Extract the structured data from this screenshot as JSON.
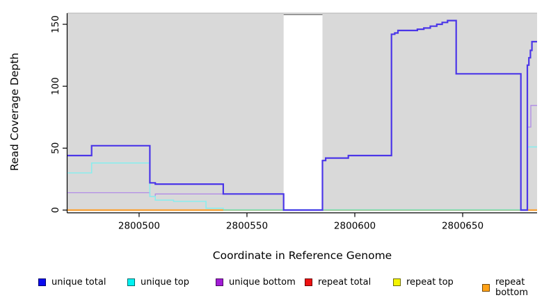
{
  "y_axis": {
    "label": "Read Coverage Depth",
    "ticks": [
      0,
      50,
      100,
      150
    ]
  },
  "x_axis": {
    "label": "Coordinate in Reference Genome",
    "ticks": [
      2800500,
      2800550,
      2800600,
      2800650
    ],
    "tick_labels": [
      "2800500",
      "2800550",
      "2800600",
      "2800650"
    ]
  },
  "legend": {
    "items": [
      {
        "label": "unique total",
        "color": "#0b0bef"
      },
      {
        "label": "unique top",
        "color": "#00f2f2"
      },
      {
        "label": "unique bottom",
        "color": "#a21cd6"
      },
      {
        "label": "repeat total",
        "color": "#ee1111"
      },
      {
        "label": "repeat top",
        "color": "#f4f400"
      },
      {
        "label": "repeat bottom",
        "color": "#ffa217"
      }
    ],
    "item_x": [
      55,
      183,
      310,
      438,
      565,
      693
    ]
  },
  "colors": {
    "plot_background": "#d9d9d9",
    "plot_top_edge": "#c3c3c3",
    "gap_region_fill": "#ffffff",
    "gap_region_top_border": "#8a8a8a",
    "axis": "#000000"
  },
  "chart_data": {
    "type": "line",
    "subtype": "step-after",
    "title": "",
    "xlabel": "Coordinate in Reference Genome",
    "ylabel": "Read Coverage Depth",
    "xlim": [
      2800466.8,
      2800684.5
    ],
    "ylim": [
      0,
      160
    ],
    "x_ticks": [
      2800500,
      2800550,
      2800600,
      2800650
    ],
    "y_ticks": [
      0,
      50,
      100,
      150
    ],
    "grid": false,
    "legend_position": "bottom",
    "gap_region": {
      "x_start": 2800567,
      "x_end": 2800585,
      "note": "white band, no gray background; coverage 0"
    },
    "series": [
      {
        "name": "unique bottom",
        "line_color": "#b08be6",
        "line_width": 1.3,
        "segments": [
          [
            [
              2800466.8,
              14
            ],
            [
              2800505,
              11
            ],
            [
              2800507.5,
              13
            ],
            [
              2800567,
              0
            ],
            [
              2800680,
              67
            ],
            [
              2800681.6,
              84.5
            ],
            [
              2800684.5,
              84.5
            ]
          ]
        ]
      },
      {
        "name": "unique top",
        "line_color": "#8aeded",
        "line_width": 1.6,
        "segments": [
          [
            [
              2800466.8,
              30
            ],
            [
              2800478,
              38
            ],
            [
              2800505,
              11
            ],
            [
              2800507.5,
              8
            ],
            [
              2800516,
              7
            ],
            [
              2800531,
              1.5
            ],
            [
              2800539,
              0.3
            ],
            [
              2800680,
              51
            ],
            [
              2800684.5,
              51
            ]
          ]
        ]
      },
      {
        "name": "repeat bottom",
        "line_color": "#ff9c20",
        "line_width": 2,
        "segments": [
          [
            [
              2800466.8,
              0
            ],
            [
              2800539,
              0
            ]
          ],
          [
            [
              2800680,
              0
            ],
            [
              2800684.5,
              0
            ]
          ]
        ]
      },
      {
        "name": "zero coverage overlap (rendered green)",
        "line_color": "#8ccf8c",
        "line_width": 1.6,
        "segments": [
          [
            [
              2800539,
              0
            ],
            [
              2800677,
              0
            ]
          ]
        ]
      },
      {
        "name": "unique total",
        "line_color": "#4b36e8",
        "line_width": 2.2,
        "segments": [
          [
            [
              2800466.8,
              44
            ],
            [
              2800478,
              52
            ],
            [
              2800505,
              22
            ],
            [
              2800507.5,
              21
            ],
            [
              2800539,
              13
            ],
            [
              2800567,
              0
            ],
            [
              2800585,
              40
            ],
            [
              2800586.5,
              42
            ],
            [
              2800597,
              44
            ],
            [
              2800617,
              142
            ],
            [
              2800618.5,
              143
            ],
            [
              2800620,
              145
            ],
            [
              2800629,
              146
            ],
            [
              2800632,
              147
            ],
            [
              2800635,
              148.5
            ],
            [
              2800638,
              150
            ],
            [
              2800640.5,
              151.5
            ],
            [
              2800643,
              153
            ],
            [
              2800647,
              110
            ],
            [
              2800677,
              0
            ],
            [
              2800680,
              117
            ],
            [
              2800680.7,
              123
            ],
            [
              2800681.4,
              129
            ],
            [
              2800682.1,
              136
            ],
            [
              2800684.5,
              136
            ]
          ]
        ]
      }
    ]
  }
}
